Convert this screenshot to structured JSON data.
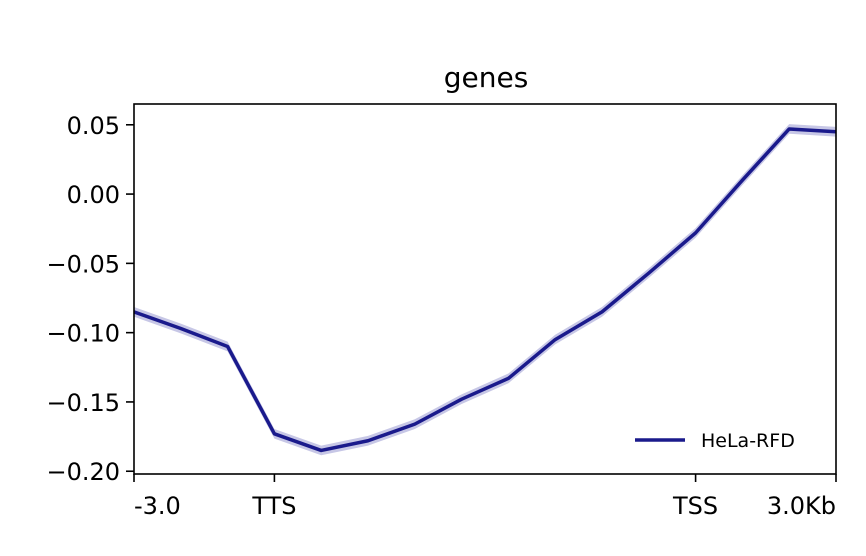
{
  "chart_data": {
    "type": "line",
    "title": "genes",
    "xlabel": "",
    "ylabel": "",
    "x_ticks": [
      {
        "pos": 0,
        "label": "-3.0"
      },
      {
        "pos": 3,
        "label": "TTS"
      },
      {
        "pos": 12,
        "label": "TSS"
      },
      {
        "pos": 15,
        "label": "3.0Kb"
      }
    ],
    "xlim": [
      0,
      15
    ],
    "ylim": [
      -0.202,
      0.065
    ],
    "y_ticks": [
      {
        "value": 0.05,
        "label": "0.05"
      },
      {
        "value": 0.0,
        "label": "0.00"
      },
      {
        "value": -0.05,
        "label": "−0.05"
      },
      {
        "value": -0.1,
        "label": "−0.10"
      },
      {
        "value": -0.15,
        "label": "−0.15"
      },
      {
        "value": -0.2,
        "label": "−0.20"
      }
    ],
    "grid": false,
    "legend": {
      "position": "bottom-right"
    },
    "series": [
      {
        "name": "HeLa-RFD",
        "color": "#1a1a8c",
        "band_color": "#c7c7e6",
        "x": [
          0,
          1,
          2,
          3,
          4,
          5,
          6,
          7,
          8,
          9,
          10,
          11,
          12,
          13,
          14,
          15
        ],
        "values": [
          -0.085,
          -0.097,
          -0.11,
          -0.173,
          -0.185,
          -0.178,
          -0.166,
          -0.148,
          -0.133,
          -0.105,
          -0.085,
          -0.057,
          -0.028,
          0.01,
          0.047,
          0.045
        ],
        "band_half_width": 0.0035
      }
    ]
  }
}
